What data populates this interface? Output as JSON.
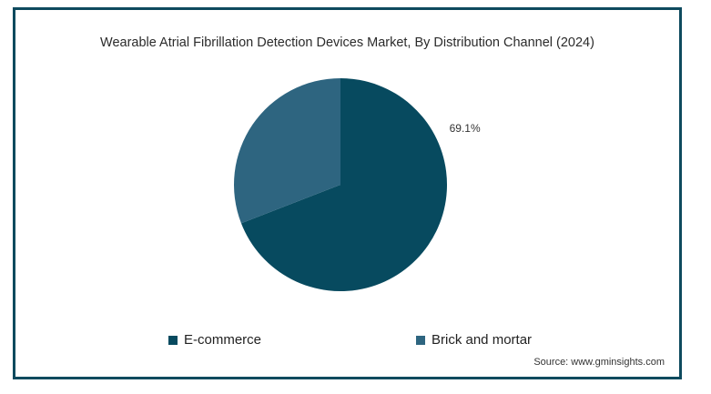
{
  "chart_data": {
    "type": "pie",
    "title": "Wearable Atrial Fibrillation Detection Devices Market, By Distribution Channel (2024)",
    "slices": [
      {
        "name": "E-commerce",
        "value": 69.1,
        "color": "#074a5f",
        "label": "69.1%"
      },
      {
        "name": "Brick and mortar",
        "value": 30.9,
        "color": "#2e6580",
        "label": ""
      }
    ],
    "legend_position": "bottom"
  },
  "source": "Source: www.gminsights.com"
}
